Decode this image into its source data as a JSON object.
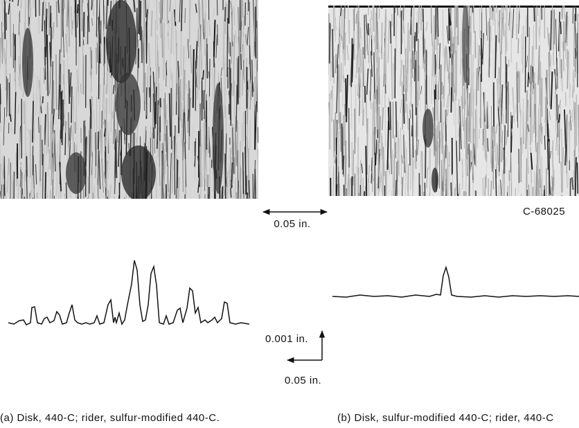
{
  "figure": {
    "scale_horizontal_top": "0.05 in.",
    "photo_id": "C-68025",
    "scale_vertical": "0.001 in.",
    "scale_horizontal_bottom": "0.05 in.",
    "caption_a": "(a) Disk, 440-C; rider, sulfur-modified 440-C.",
    "caption_b": "(b) Disk, sulfur-modified 440-C; rider, 440-C"
  }
}
